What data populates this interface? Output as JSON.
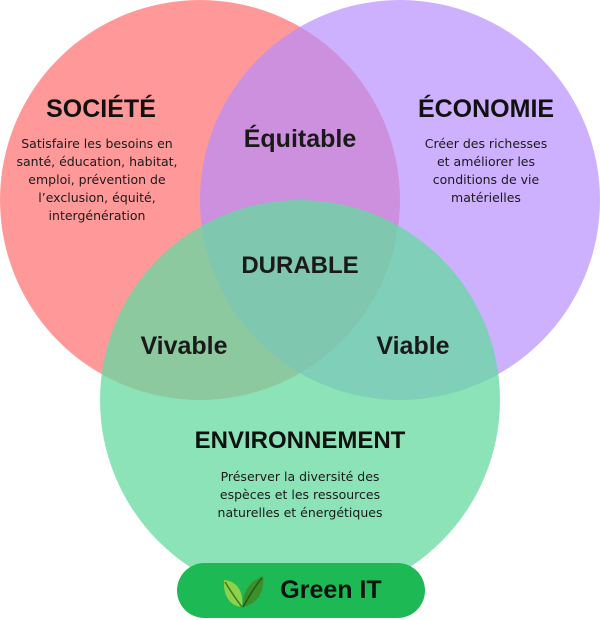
{
  "circles": {
    "societe": {
      "title": "SOCIÉTÉ",
      "description": [
        "Satisfaire les besoins en",
        "santé, éducation, habitat,",
        "emploi, prévention de",
        "l’exclusion, équité,",
        "intergénération"
      ],
      "color": "#ff7c7c"
    },
    "economie": {
      "title": "ÉCONOMIE",
      "description": [
        "Créer des richesses",
        "et améliorer les",
        "conditions de vie",
        "matérielles"
      ],
      "color": "#b58cff"
    },
    "environnement": {
      "title": "ENVIRONNEMENT",
      "description": [
        "Préserver la diversité des",
        "espèces et les ressources",
        "naturelles et énergétiques"
      ],
      "color": "#66d9a0"
    }
  },
  "intersections": {
    "equitable": "Équitable",
    "vivable": "Vivable",
    "viable": "Viable",
    "durable": "DURABLE"
  },
  "badge": {
    "label": "Green IT",
    "color": "#1db954",
    "icon": "leaf-icon"
  }
}
